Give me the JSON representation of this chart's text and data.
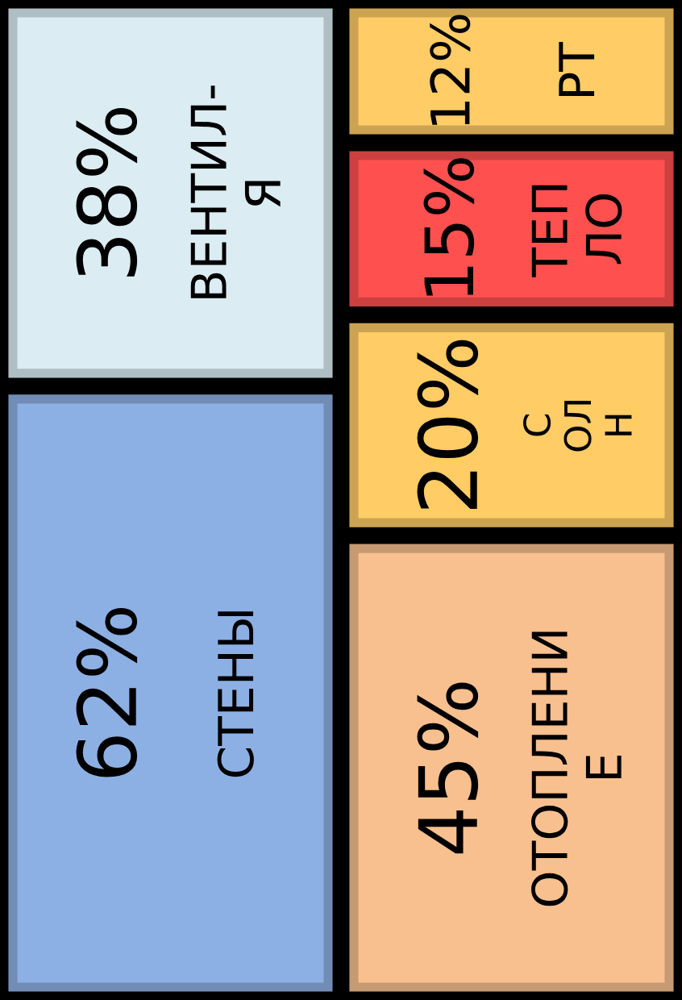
{
  "chart_data": {
    "type": "other",
    "categories": [
      "ВЕНТИЛ-\nЯ",
      "СТЕНЫ",
      "РТ",
      "ТЕП\nЛО",
      "С\nОЛ\nН",
      "ОТОПЛЕНИ\nЕ"
    ],
    "values": [
      38,
      62,
      12,
      15,
      20,
      45
    ],
    "value_labels": [
      "38%",
      "62%",
      "12%",
      "15%",
      "20%",
      "45%"
    ],
    "colors": [
      "#dbedf3",
      "#8db0e4",
      "#ffcc66",
      "#ff5050",
      "#ffcc66",
      "#f8c08f"
    ]
  }
}
